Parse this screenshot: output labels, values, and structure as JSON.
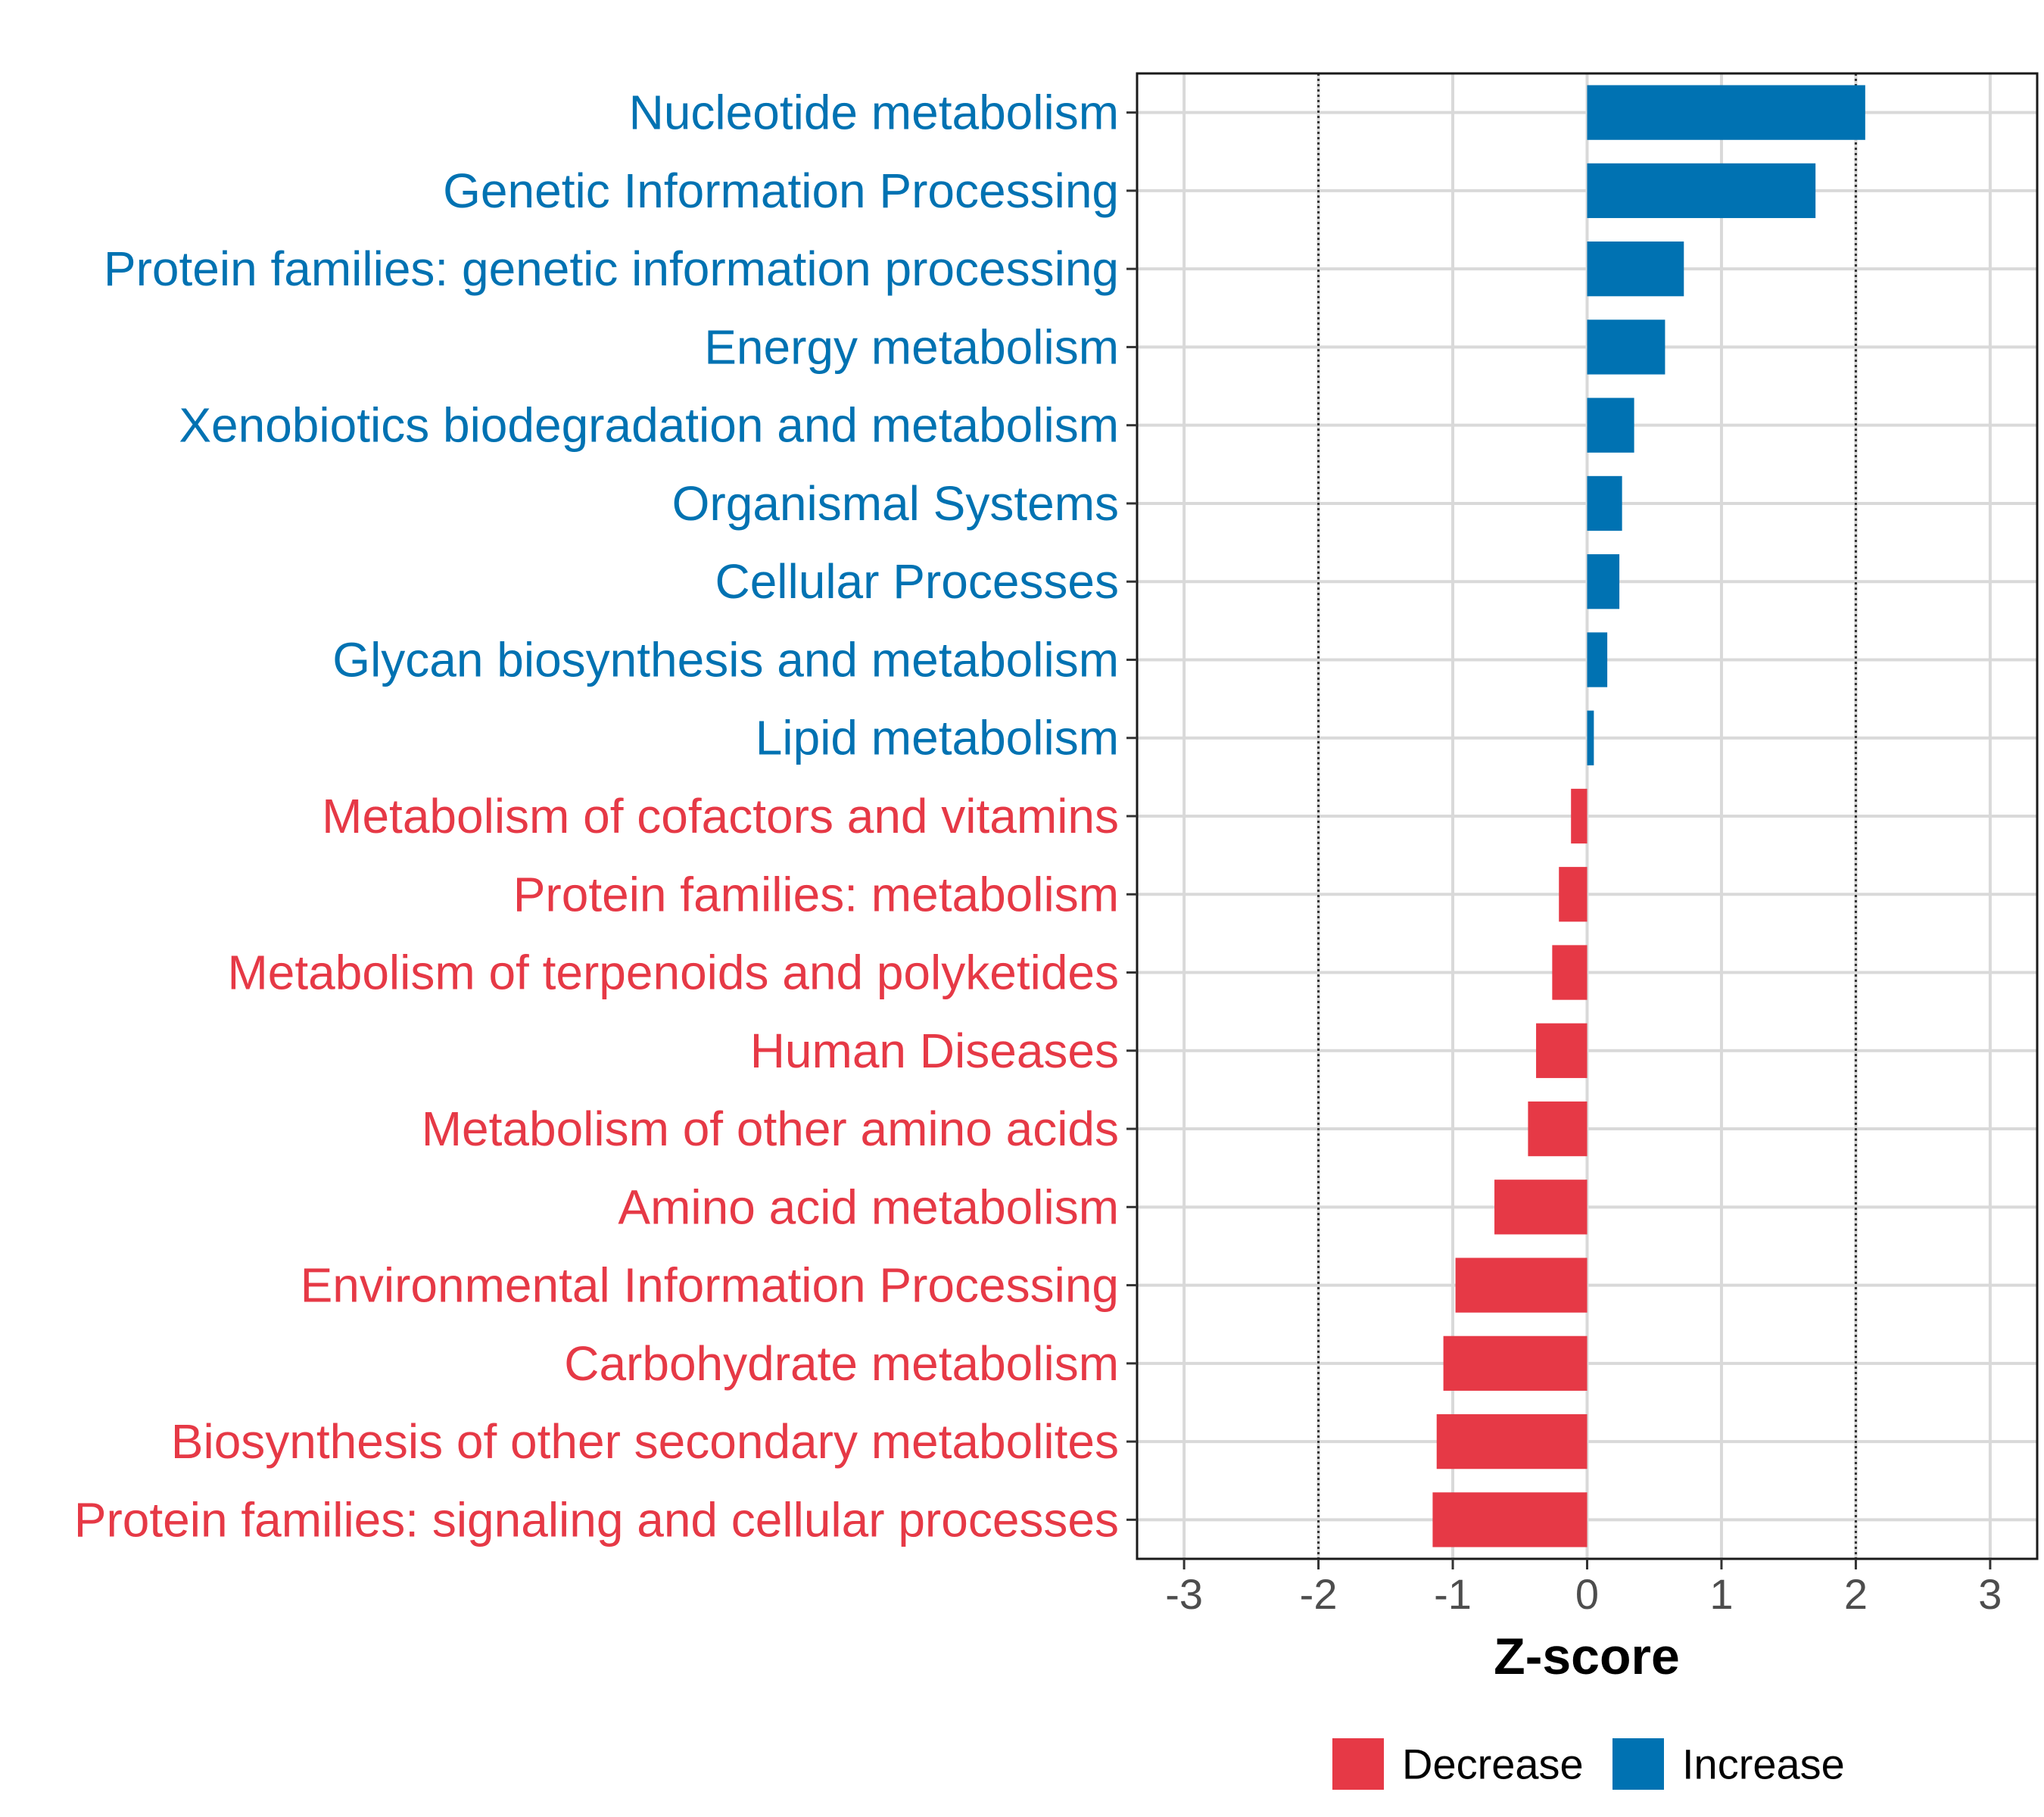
{
  "chart_data": {
    "type": "bar",
    "orientation": "horizontal",
    "title": "",
    "xlabel": "Z-score",
    "ylabel": "",
    "xlim": [
      -3.35,
      3.35
    ],
    "xticks": [
      -3,
      -2,
      -1,
      0,
      1,
      2,
      3
    ],
    "xtick_labels": [
      "-3",
      "-2",
      "-1",
      "0",
      "1",
      "2",
      "3"
    ],
    "reference_lines": [
      -2,
      2
    ],
    "grid": true,
    "colors": {
      "Increase": "#0072B2",
      "Decrease": "#E63946"
    },
    "categories": [
      "Nucleotide metabolism",
      "Genetic Information Processing",
      "Protein families: genetic information processing",
      "Energy metabolism",
      "Xenobiotics biodegradation and metabolism",
      "Organismal Systems",
      "Cellular Processes",
      "Glycan biosynthesis and metabolism",
      "Lipid metabolism",
      "Metabolism of cofactors and vitamins",
      "Protein families: metabolism",
      "Metabolism of terpenoids and polyketides",
      "Human Diseases",
      "Metabolism of other amino acids",
      "Amino acid metabolism",
      "Environmental Information Processing",
      "Carbohydrate metabolism",
      "Biosynthesis of other secondary metabolites",
      "Protein families: signaling and cellular processes"
    ],
    "values": [
      2.07,
      1.7,
      0.72,
      0.58,
      0.35,
      0.26,
      0.24,
      0.15,
      0.05,
      -0.12,
      -0.21,
      -0.26,
      -0.38,
      -0.44,
      -0.69,
      -0.98,
      -1.07,
      -1.12,
      -1.15
    ],
    "groups": [
      "Increase",
      "Increase",
      "Increase",
      "Increase",
      "Increase",
      "Increase",
      "Increase",
      "Increase",
      "Increase",
      "Decrease",
      "Decrease",
      "Decrease",
      "Decrease",
      "Decrease",
      "Decrease",
      "Decrease",
      "Decrease",
      "Decrease",
      "Decrease"
    ],
    "legend": {
      "position": "bottom",
      "entries": [
        {
          "label": "Decrease",
          "color": "#E63946"
        },
        {
          "label": "Increase",
          "color": "#0072B2"
        }
      ]
    }
  }
}
